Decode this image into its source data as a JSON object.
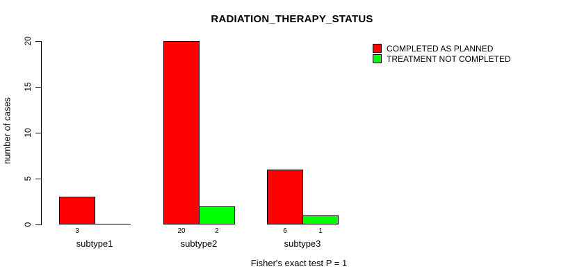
{
  "title": "RADIATION_THERAPY_STATUS",
  "chart_data": {
    "type": "bar",
    "categories": [
      "subtype1",
      "subtype2",
      "subtype3"
    ],
    "series": [
      {
        "name": "COMPLETED AS PLANNED",
        "color": "#FF0000",
        "values": [
          3,
          20,
          6
        ]
      },
      {
        "name": "TREATMENT NOT COMPLETED",
        "color": "#00FF00",
        "values": [
          0,
          2,
          1
        ]
      }
    ],
    "title": "RADIATION_THERAPY_STATUS",
    "xlabel": "",
    "ylabel": "number of cases",
    "ylim": [
      0,
      20
    ],
    "yticks": [
      0,
      5,
      10,
      15,
      20
    ],
    "grid": false,
    "legend_position": "top-right",
    "bar_outline_color": "#000000",
    "footnote": "Fisher's exact test P = 1"
  }
}
